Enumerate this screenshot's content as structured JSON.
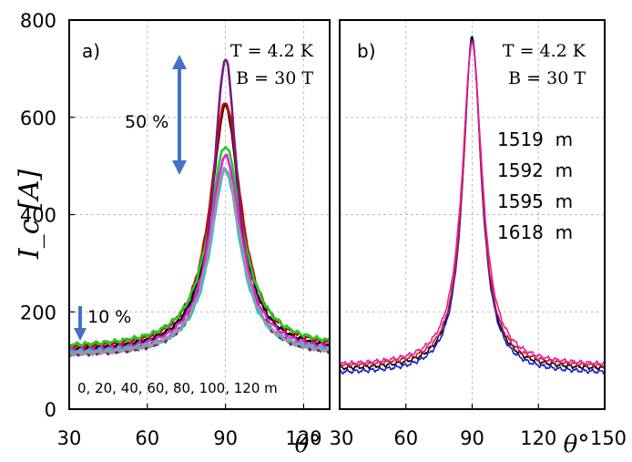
{
  "chart_data": [
    {
      "type": "line",
      "panel_label": "a)",
      "conditions": [
        "T = 4.2 K",
        "B = 30 T"
      ],
      "xlabel": "θ°",
      "ylabel": "I_c [A]",
      "xlim": [
        30,
        130
      ],
      "ylim": [
        0,
        800
      ],
      "xticks": [
        30,
        60,
        90,
        120
      ],
      "yticks": [
        0,
        200,
        400,
        600,
        800
      ],
      "grid": true,
      "annotations": {
        "spread_peak": "50 %",
        "spread_base": "10 %",
        "positions_caption": "0, 20, 40, 60, 80, 100, 120 m"
      },
      "series": [
        {
          "name": "0 m",
          "color": "#000000",
          "peak": 625,
          "base": 118,
          "hwhm": 6.8
        },
        {
          "name": "20 m",
          "color": "#cc0000",
          "peak": 630,
          "base": 122,
          "hwhm": 7.2
        },
        {
          "name": "40 m",
          "color": "#22cc22",
          "peak": 540,
          "base": 125,
          "hwhm": 8.0
        },
        {
          "name": "60 m",
          "color": "#7a1a7a",
          "peak": 720,
          "base": 108,
          "hwhm": 5.6
        },
        {
          "name": "80 m",
          "color": "#e020e0",
          "peak": 520,
          "base": 114,
          "hwhm": 7.5
        },
        {
          "name": "100 m",
          "color": "#22c8d8",
          "peak": 490,
          "base": 112,
          "hwhm": 7.0
        },
        {
          "name": "120 m",
          "color": "#999999",
          "peak": 495,
          "base": 108,
          "hwhm": 7.4
        }
      ]
    },
    {
      "type": "line",
      "panel_label": "b)",
      "conditions": [
        "T = 4.2 K",
        "B = 30 T"
      ],
      "xlabel": "θ°",
      "ylabel": "",
      "xlim": [
        30,
        150
      ],
      "ylim": [
        0,
        800
      ],
      "xticks": [
        30,
        60,
        90,
        120,
        150
      ],
      "grid": true,
      "legend": [
        "1519  m",
        "1592  m",
        "1595  m",
        "1618  m"
      ],
      "series": [
        {
          "name": "1519 m",
          "color": "#000000",
          "peak": 765,
          "base": 80,
          "hwhm": 5.0
        },
        {
          "name": "1592 m",
          "color": "#1a1acc",
          "peak": 762,
          "base": 72,
          "hwhm": 5.0
        },
        {
          "name": "1595 m",
          "color": "#cc1a1a",
          "peak": 758,
          "base": 85,
          "hwhm": 5.1
        },
        {
          "name": "1618 m",
          "color": "#e020a0",
          "peak": 755,
          "base": 88,
          "hwhm": 5.5
        }
      ]
    }
  ]
}
